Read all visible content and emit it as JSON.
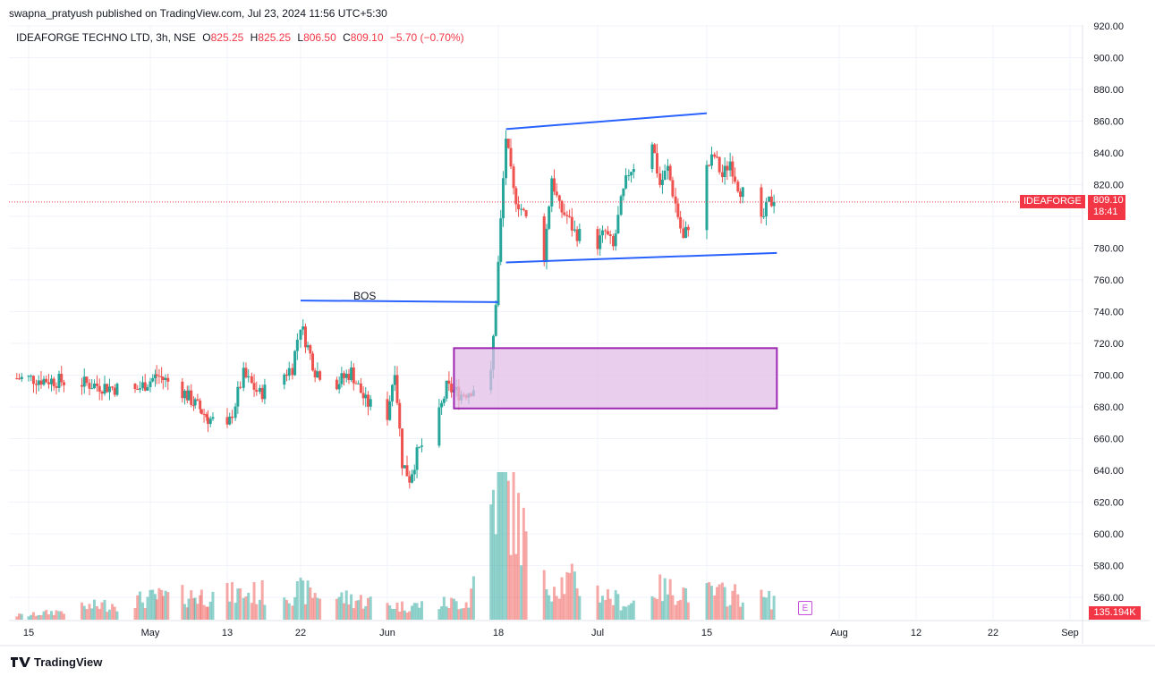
{
  "header": {
    "published_line": "swapna_pratyush published on TradingView.com, Jul 23, 2024 11:56 UTC+5:30"
  },
  "legend": {
    "symbol": "IDEAFORGE TECHNO LTD, 3h, NSE",
    "open_label": "O",
    "open": "825.25",
    "high_label": "H",
    "high": "825.25",
    "low_label": "L",
    "low": "806.50",
    "close_label": "C",
    "close": "809.10",
    "change": "−5.70 (−0.70%)"
  },
  "price_tag": {
    "name": "IDEAFORGE",
    "price": "809.10",
    "countdown": "18:41"
  },
  "volume_tag": "135.194K",
  "earnings_marker": "E",
  "annotation_bos": "BOS",
  "footer": {
    "brand": "TradingView",
    "logo_icon": "tradingview-logo-icon"
  },
  "colors": {
    "up": "#26a69a",
    "down": "#ef5350",
    "trendline": "#2962ff",
    "zone_border": "#9c27b0",
    "zone_fill": "#e1bee7",
    "price_line": "#f23645"
  },
  "chart_data": {
    "type": "candlestick",
    "y_axis_ticks": [
      "920.00",
      "900.00",
      "880.00",
      "860.00",
      "840.00",
      "820.00",
      "800.00",
      "780.00",
      "760.00",
      "740.00",
      "720.00",
      "700.00",
      "680.00",
      "660.00",
      "640.00",
      "620.00",
      "600.00",
      "580.00",
      "560.00"
    ],
    "y_axis_values": [
      920,
      900,
      880,
      860,
      840,
      820,
      800,
      780,
      760,
      740,
      720,
      700,
      680,
      660,
      640,
      620,
      600,
      580,
      560
    ],
    "x_axis_labels": [
      {
        "label": "15",
        "date": "2024-04-15"
      },
      {
        "label": "May",
        "date": "2024-05-01"
      },
      {
        "label": "13",
        "date": "2024-05-13"
      },
      {
        "label": "22",
        "date": "2024-05-22"
      },
      {
        "label": "Jun",
        "date": "2024-06-03"
      },
      {
        "label": "18",
        "date": "2024-06-18"
      },
      {
        "label": "Jul",
        "date": "2024-07-01"
      },
      {
        "label": "15",
        "date": "2024-07-15"
      },
      {
        "label": "Aug",
        "date": "2024-08-01"
      },
      {
        "label": "12",
        "date": "2024-08-12"
      },
      {
        "label": "22",
        "date": "2024-08-22"
      },
      {
        "label": "Sep",
        "date": "2024-09-02"
      }
    ],
    "ylim": [
      555,
      922
    ],
    "last_close": 809.1,
    "price_path": [
      [
        "2024-04-15",
        698
      ],
      [
        "2024-04-22",
        695
      ],
      [
        "2024-04-29",
        690
      ],
      [
        "2024-05-02",
        700
      ],
      [
        "2024-05-06",
        690
      ],
      [
        "2024-05-10",
        673
      ],
      [
        "2024-05-13",
        665
      ],
      [
        "2024-05-15",
        700
      ],
      [
        "2024-05-17",
        688
      ],
      [
        "2024-05-21",
        705
      ],
      [
        "2024-05-22",
        732
      ],
      [
        "2024-05-24",
        703
      ],
      [
        "2024-05-27",
        695
      ],
      [
        "2024-05-29",
        702
      ],
      [
        "2024-05-31",
        683
      ],
      [
        "2024-06-03",
        675
      ],
      [
        "2024-06-04",
        705
      ],
      [
        "2024-06-05",
        645
      ],
      [
        "2024-06-06",
        635
      ],
      [
        "2024-06-07",
        650
      ],
      [
        "2024-06-10",
        675
      ],
      [
        "2024-06-11",
        692
      ],
      [
        "2024-06-13",
        688
      ],
      [
        "2024-06-14",
        690
      ],
      [
        "2024-06-17",
        700
      ],
      [
        "2024-06-18",
        770
      ],
      [
        "2024-06-19",
        850
      ],
      [
        "2024-06-20",
        815
      ],
      [
        "2024-06-24",
        775
      ],
      [
        "2024-06-25",
        825
      ],
      [
        "2024-06-26",
        805
      ],
      [
        "2024-06-27",
        800
      ],
      [
        "2024-06-28",
        790
      ],
      [
        "2024-07-01",
        783
      ],
      [
        "2024-07-02",
        790
      ],
      [
        "2024-07-03",
        780
      ],
      [
        "2024-07-04",
        808
      ],
      [
        "2024-07-05",
        828
      ],
      [
        "2024-07-08",
        848
      ],
      [
        "2024-07-09",
        820
      ],
      [
        "2024-07-10",
        830
      ],
      [
        "2024-07-11",
        808
      ],
      [
        "2024-07-12",
        785
      ],
      [
        "2024-07-15",
        830
      ],
      [
        "2024-07-16",
        838
      ],
      [
        "2024-07-17",
        825
      ],
      [
        "2024-07-18",
        835
      ],
      [
        "2024-07-19",
        820
      ],
      [
        "2024-07-22",
        795
      ],
      [
        "2024-07-23",
        809
      ]
    ],
    "volume_ylim": [
      0,
      1000000
    ],
    "volume_path": [
      [
        "2024-04-15",
        30000
      ],
      [
        "2024-05-02",
        150000
      ],
      [
        "2024-05-22",
        190000
      ],
      [
        "2024-06-05",
        90000
      ],
      [
        "2024-06-14",
        120000
      ],
      [
        "2024-06-18",
        1000000
      ],
      [
        "2024-06-19",
        870000
      ],
      [
        "2024-06-24",
        240000
      ],
      [
        "2024-06-28",
        260000
      ],
      [
        "2024-07-05",
        100000
      ],
      [
        "2024-07-08",
        210000
      ],
      [
        "2024-07-15",
        180000
      ],
      [
        "2024-07-19",
        170000
      ],
      [
        "2024-07-23",
        135194
      ]
    ],
    "trendlines": [
      {
        "from": [
          "2024-06-19",
          855
        ],
        "to": [
          "2024-07-15",
          865
        ]
      },
      {
        "from": [
          "2024-06-19",
          771
        ],
        "to": [
          "2024-07-24",
          777
        ]
      },
      {
        "from": [
          "2024-05-22",
          747
        ],
        "to": [
          "2024-06-18",
          746
        ]
      }
    ],
    "zone": {
      "x0": "2024-06-12",
      "x1": "2024-07-24",
      "y0": 679,
      "y1": 717
    }
  }
}
